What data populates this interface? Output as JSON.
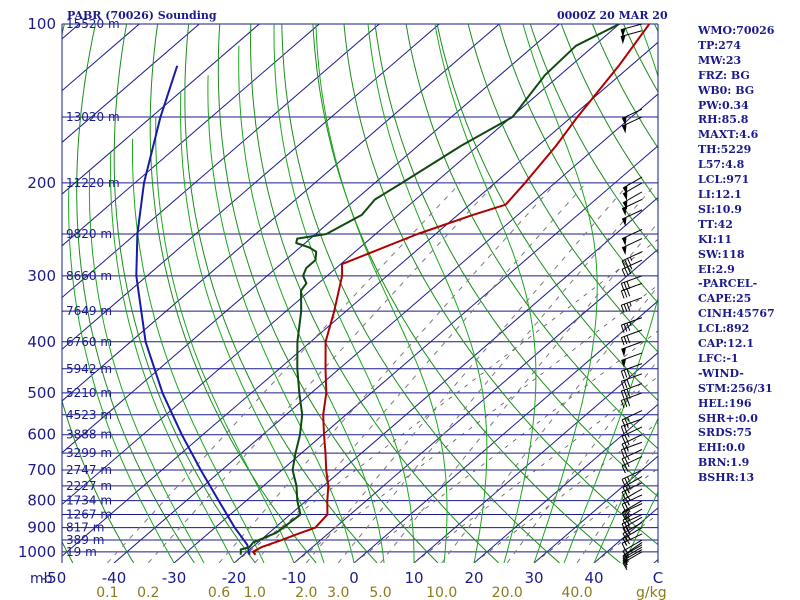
{
  "header": {
    "station": "PABR (70026) Sounding",
    "datetime": "0000Z 20 MAR 20"
  },
  "indices": [
    "WMO:70026",
    "TP:274",
    "MW:23",
    "FRZ: BG",
    "WB0: BG",
    "PW:0.34",
    "RH:85.8",
    "MAXT:4.6",
    "TH:5229",
    "L57:4.8",
    "LCL:971",
    "LI:12.1",
    "SI:10.9",
    "TT:42",
    "KI:11",
    "SW:118",
    "EI:2.9",
    "-PARCEL-",
    "CAPE:25",
    "CINH:45767",
    "LCL:892",
    "CAP:12.1",
    "LFC:-1",
    "-WIND-",
    "STM:256/31",
    "HEL:196",
    "SHR+:0.0",
    "SRDS:75",
    "EHI:0.0",
    "BRN:1.9",
    "BSHR:13"
  ],
  "colors": {
    "isobar": "#1a1a8c",
    "isotherm": "#1a1a8c",
    "dry_adiabat": "#1a8c1a",
    "moist_adiabat": "#1aa81a",
    "mixing_ratio": "#7a7a7a",
    "mixing_ratio_label": "#8c7a1a",
    "temperature": "#b00000",
    "dewpoint": "#0e4a0e",
    "parcel": "#1a1aa8",
    "dewpoint_trace": "#2a2aa8",
    "label_text": "#1a1a8c"
  },
  "chart_data": {
    "type": "skew-t",
    "pressure_unit": "mb",
    "pressure_ticks": [
      100,
      200,
      300,
      400,
      500,
      600,
      700,
      800,
      900,
      1000
    ],
    "temperature_ticks": [
      -50,
      -40,
      -30,
      -20,
      -10,
      0,
      10,
      20,
      30,
      40
    ],
    "mixing_ratio_labels": [
      "0.1",
      "0.2",
      "0.6",
      "1.0",
      "2.0",
      "3.0",
      "5.0",
      "10.0",
      "20.0",
      "40.0"
    ],
    "mixing_ratio_unit": "g/kg",
    "x_axis_end_label": "C",
    "height_labels": [
      {
        "p": 100,
        "label": "15520 m"
      },
      {
        "p": 150,
        "label": "13020 m"
      },
      {
        "p": 200,
        "label": "11220 m"
      },
      {
        "p": 250,
        "label": "9820 m"
      },
      {
        "p": 300,
        "label": "8660 m"
      },
      {
        "p": 350,
        "label": "7649 m"
      },
      {
        "p": 400,
        "label": "6760 m"
      },
      {
        "p": 450,
        "label": "5942 m"
      },
      {
        "p": 500,
        "label": "5210 m"
      },
      {
        "p": 550,
        "label": "4523 m"
      },
      {
        "p": 600,
        "label": "3888 m"
      },
      {
        "p": 650,
        "label": "3299 m"
      },
      {
        "p": 700,
        "label": "2747 m"
      },
      {
        "p": 750,
        "label": "2227 m"
      },
      {
        "p": 800,
        "label": "1734 m"
      },
      {
        "p": 850,
        "label": "1267 m"
      },
      {
        "p": 900,
        "label": "817 m"
      },
      {
        "p": 950,
        "label": "389 m"
      },
      {
        "p": 1000,
        "label": "19 m"
      }
    ],
    "temperature_profile": [
      {
        "p": 1013,
        "t": -18.0
      },
      {
        "p": 1000,
        "t": -19.0
      },
      {
        "p": 980,
        "t": -18.5
      },
      {
        "p": 950,
        "t": -16.5
      },
      {
        "p": 925,
        "t": -15.0
      },
      {
        "p": 900,
        "t": -13.3
      },
      {
        "p": 850,
        "t": -13.8
      },
      {
        "p": 800,
        "t": -16.5
      },
      {
        "p": 750,
        "t": -19.2
      },
      {
        "p": 700,
        "t": -22.6
      },
      {
        "p": 650,
        "t": -26.0
      },
      {
        "p": 600,
        "t": -29.8
      },
      {
        "p": 550,
        "t": -33.8
      },
      {
        "p": 500,
        "t": -37.5
      },
      {
        "p": 450,
        "t": -42.3
      },
      {
        "p": 400,
        "t": -47.5
      },
      {
        "p": 350,
        "t": -52.0
      },
      {
        "p": 300,
        "t": -57.5
      },
      {
        "p": 285,
        "t": -59.8
      },
      {
        "p": 270,
        "t": -57.0
      },
      {
        "p": 250,
        "t": -53.0
      },
      {
        "p": 230,
        "t": -47.5
      },
      {
        "p": 220,
        "t": -44.0
      },
      {
        "p": 200,
        "t": -45.0
      },
      {
        "p": 170,
        "t": -47.0
      },
      {
        "p": 150,
        "t": -49.0
      },
      {
        "p": 120,
        "t": -52.0
      },
      {
        "p": 100,
        "t": -55.0
      }
    ],
    "dewpoint_profile": [
      {
        "p": 1013,
        "t": -20.5
      },
      {
        "p": 1000,
        "t": -21.0
      },
      {
        "p": 990,
        "t": -21.5
      },
      {
        "p": 980,
        "t": -20.5
      },
      {
        "p": 960,
        "t": -20.8
      },
      {
        "p": 920,
        "t": -18.8
      },
      {
        "p": 850,
        "t": -18.3
      },
      {
        "p": 800,
        "t": -21.5
      },
      {
        "p": 750,
        "t": -24.5
      },
      {
        "p": 700,
        "t": -28.2
      },
      {
        "p": 650,
        "t": -31.0
      },
      {
        "p": 600,
        "t": -33.8
      },
      {
        "p": 550,
        "t": -37.3
      },
      {
        "p": 500,
        "t": -42.0
      },
      {
        "p": 450,
        "t": -47.0
      },
      {
        "p": 400,
        "t": -52.2
      },
      {
        "p": 350,
        "t": -57.5
      },
      {
        "p": 320,
        "t": -61.5
      },
      {
        "p": 310,
        "t": -62.0
      },
      {
        "p": 300,
        "t": -64.0
      },
      {
        "p": 290,
        "t": -65.0
      },
      {
        "p": 280,
        "t": -65.0
      },
      {
        "p": 270,
        "t": -66.5
      },
      {
        "p": 265,
        "t": -68.5
      },
      {
        "p": 260,
        "t": -71.5
      },
      {
        "p": 255,
        "t": -72.2
      },
      {
        "p": 250,
        "t": -68.2
      },
      {
        "p": 230,
        "t": -66.0
      },
      {
        "p": 215,
        "t": -66.8
      },
      {
        "p": 200,
        "t": -65.5
      },
      {
        "p": 170,
        "t": -62.8
      },
      {
        "p": 150,
        "t": -59.8
      },
      {
        "p": 125,
        "t": -62.5
      },
      {
        "p": 110,
        "t": -63.0
      },
      {
        "p": 100,
        "t": -60.0
      }
    ],
    "parcel_profile": [
      {
        "p": 1013,
        "t": -19.0
      },
      {
        "p": 970,
        "t": -21.3
      },
      {
        "p": 900,
        "t": -26.7
      },
      {
        "p": 800,
        "t": -34.6
      },
      {
        "p": 700,
        "t": -43.5
      },
      {
        "p": 600,
        "t": -53.5
      },
      {
        "p": 500,
        "t": -64.8
      },
      {
        "p": 400,
        "t": -77.5
      },
      {
        "p": 300,
        "t": -91.8
      },
      {
        "p": 250,
        "t": -99.7
      },
      {
        "p": 200,
        "t": -108.5
      },
      {
        "p": 150,
        "t": -118.5
      },
      {
        "p": 120,
        "t": -125.6
      }
    ],
    "wind_barbs": [
      {
        "p": 1000,
        "dir": 240,
        "kt": 15
      },
      {
        "p": 990,
        "dir": 240,
        "kt": 15
      },
      {
        "p": 980,
        "dir": 240,
        "kt": 15
      },
      {
        "p": 970,
        "dir": 240,
        "kt": 15
      },
      {
        "p": 960,
        "dir": 235,
        "kt": 15
      },
      {
        "p": 950,
        "dir": 240,
        "kt": 15
      },
      {
        "p": 925,
        "dir": 245,
        "kt": 15
      },
      {
        "p": 900,
        "dir": 240,
        "kt": 25
      },
      {
        "p": 880,
        "dir": 240,
        "kt": 25
      },
      {
        "p": 860,
        "dir": 240,
        "kt": 25
      },
      {
        "p": 850,
        "dir": 245,
        "kt": 25
      },
      {
        "p": 830,
        "dir": 240,
        "kt": 25
      },
      {
        "p": 810,
        "dir": 245,
        "kt": 25
      },
      {
        "p": 800,
        "dir": 240,
        "kt": 25
      },
      {
        "p": 780,
        "dir": 245,
        "kt": 25
      },
      {
        "p": 760,
        "dir": 240,
        "kt": 25
      },
      {
        "p": 740,
        "dir": 245,
        "kt": 25
      },
      {
        "p": 720,
        "dir": 240,
        "kt": 25
      },
      {
        "p": 700,
        "dir": 245,
        "kt": 25
      },
      {
        "p": 660,
        "dir": 245,
        "kt": 25
      },
      {
        "p": 640,
        "dir": 245,
        "kt": 25
      },
      {
        "p": 620,
        "dir": 250,
        "kt": 25
      },
      {
        "p": 600,
        "dir": 245,
        "kt": 25
      },
      {
        "p": 580,
        "dir": 245,
        "kt": 25
      },
      {
        "p": 560,
        "dir": 250,
        "kt": 25
      },
      {
        "p": 540,
        "dir": 245,
        "kt": 25
      },
      {
        "p": 500,
        "dir": 250,
        "kt": 30
      },
      {
        "p": 480,
        "dir": 250,
        "kt": 30
      },
      {
        "p": 460,
        "dir": 250,
        "kt": 30
      },
      {
        "p": 440,
        "dir": 250,
        "kt": 30
      },
      {
        "p": 420,
        "dir": 250,
        "kt": 50
      },
      {
        "p": 400,
        "dir": 250,
        "kt": 50
      },
      {
        "p": 380,
        "dir": 250,
        "kt": 30
      },
      {
        "p": 360,
        "dir": 250,
        "kt": 35
      },
      {
        "p": 330,
        "dir": 250,
        "kt": 35
      },
      {
        "p": 310,
        "dir": 250,
        "kt": 30
      },
      {
        "p": 300,
        "dir": 250,
        "kt": 30
      },
      {
        "p": 280,
        "dir": 245,
        "kt": 35
      },
      {
        "p": 270,
        "dir": 245,
        "kt": 35
      },
      {
        "p": 255,
        "dir": 245,
        "kt": 50
      },
      {
        "p": 245,
        "dir": 245,
        "kt": 50
      },
      {
        "p": 225,
        "dir": 245,
        "kt": 50
      },
      {
        "p": 215,
        "dir": 245,
        "kt": 50
      },
      {
        "p": 208,
        "dir": 240,
        "kt": 50
      },
      {
        "p": 200,
        "dir": 240,
        "kt": 50
      },
      {
        "p": 195,
        "dir": 240,
        "kt": 50
      },
      {
        "p": 150,
        "dir": 245,
        "kt": 50
      },
      {
        "p": 145,
        "dir": 245,
        "kt": 50
      },
      {
        "p": 103,
        "dir": 255,
        "kt": 50
      },
      {
        "p": 100,
        "dir": 255,
        "kt": 50
      }
    ]
  }
}
